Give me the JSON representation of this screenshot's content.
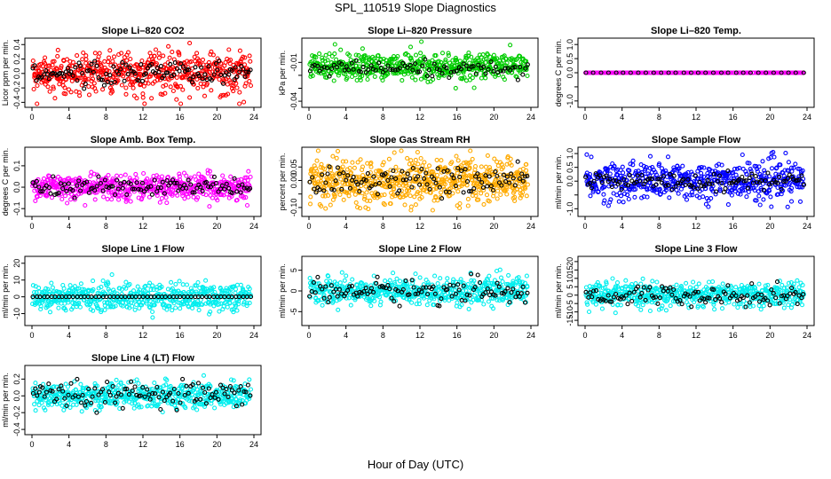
{
  "main_title": "SPL_110519  Slope Diagnostics",
  "x_axis_label": "Hour of Day (UTC)",
  "chart_data": [
    {
      "type": "scatter",
      "title": "Slope Li–820 CO2",
      "ylabel": "Licor ppm per min.",
      "color": "#ff0000",
      "xlim": [
        0,
        24
      ],
      "xticks": [
        0,
        4,
        8,
        12,
        16,
        20,
        24
      ],
      "ylim": [
        -0.42,
        0.44
      ],
      "yticks": [
        -0.4,
        -0.2,
        0.0,
        0.2,
        0.4
      ],
      "ytick_labels": [
        "-0.4",
        "-0.2",
        "0.0",
        "0.2",
        "0.4"
      ],
      "series": [
        {
          "color": "#ff0000",
          "spread": 0.15,
          "extreme": 0.42,
          "count": 560,
          "x": [],
          "y": []
        },
        {
          "color": "#000000",
          "spread": 0.08,
          "extreme": 0.25,
          "count": 120,
          "x": [],
          "y": []
        }
      ]
    },
    {
      "type": "scatter",
      "title": "Slope Li–820 Pressure",
      "ylabel": "kPa per min.",
      "color": "#00cc00",
      "xlim": [
        0,
        24
      ],
      "xticks": [
        0,
        4,
        8,
        12,
        16,
        20,
        24
      ],
      "ylim": [
        -0.042,
        0.006
      ],
      "yticks": [
        -0.04,
        -0.03,
        -0.02,
        -0.01
      ],
      "ytick_labels": [
        "-0.04",
        "",
        "",
        "-0.01"
      ],
      "series": [
        {
          "color": "#00cc00",
          "spread": 0.005,
          "center": -0.013,
          "extreme": 0.04,
          "count": 560,
          "x": [],
          "y": []
        },
        {
          "color": "#000000",
          "spread": 0.003,
          "center": -0.015,
          "extreme": 0.02,
          "count": 90,
          "x": [],
          "y": []
        }
      ]
    },
    {
      "type": "scatter",
      "title": "Slope Li–820 Temp.",
      "ylabel": "degrees C per min.",
      "color": "#ff00ff",
      "xlim": [
        0,
        24
      ],
      "xticks": [
        0,
        4,
        8,
        12,
        16,
        20,
        24
      ],
      "ylim": [
        -1.1,
        1.1
      ],
      "yticks": [
        -1.0,
        -0.5,
        0.0,
        0.5,
        1.0
      ],
      "ytick_labels": [
        "-1.0",
        "",
        "0.0",
        "0.5",
        "1.0"
      ],
      "series": [
        {
          "color": "#ff00ff",
          "spread": 0,
          "extreme": 0,
          "count": 200,
          "x": [],
          "y": []
        },
        {
          "color": "#000000",
          "spread": 0,
          "extreme": 0,
          "count": 30,
          "x": [],
          "y": []
        }
      ]
    },
    {
      "type": "scatter",
      "title": "Slope Amb. Box Temp.",
      "ylabel": "degrees C per min.",
      "color": "#ff00ff",
      "xlim": [
        0,
        24
      ],
      "xticks": [
        0,
        4,
        8,
        12,
        16,
        20,
        24
      ],
      "ylim": [
        -0.12,
        0.17
      ],
      "yticks": [
        -0.1,
        0.0,
        0.1
      ],
      "ytick_labels": [
        "-0.1",
        "0.0",
        "0.1"
      ],
      "series": [
        {
          "color": "#ff00ff",
          "spread": 0.03,
          "extreme": 0.15,
          "count": 560,
          "x": [],
          "y": []
        },
        {
          "color": "#000000",
          "spread": 0.02,
          "extreme": 0.05,
          "count": 110,
          "x": [],
          "y": []
        }
      ]
    },
    {
      "type": "scatter",
      "title": "Slope Gas Stream RH",
      "ylabel": "percent per min.",
      "color": "#ffaa00",
      "xlim": [
        0,
        24
      ],
      "xticks": [
        0,
        4,
        8,
        12,
        16,
        20,
        24
      ],
      "ylim": [
        -0.12,
        0.11
      ],
      "yticks": [
        -0.1,
        -0.05,
        0.0,
        0.05
      ],
      "ytick_labels": [
        "-0.10",
        "",
        "0.00",
        "0.05"
      ],
      "series": [
        {
          "color": "#ffaa00",
          "spread": 0.04,
          "extreme": 0.11,
          "count": 650,
          "x": [],
          "y": []
        },
        {
          "color": "#000000",
          "spread": 0.025,
          "extreme": 0.07,
          "count": 110,
          "x": [],
          "y": []
        }
      ]
    },
    {
      "type": "scatter",
      "title": "Slope Sample Flow",
      "ylabel": "ml/min per min.",
      "color": "#0000ff",
      "xlim": [
        0,
        24
      ],
      "xticks": [
        0,
        4,
        8,
        12,
        16,
        20,
        24
      ],
      "ylim": [
        -1.15,
        1.1
      ],
      "yticks": [
        -1.0,
        -0.5,
        0.0,
        0.5,
        1.0
      ],
      "ytick_labels": [
        "-1.0",
        "",
        "0.0",
        "0.5",
        "1.0"
      ],
      "series": [
        {
          "color": "#0000ff",
          "spread": 0.35,
          "extreme": 1.05,
          "count": 560,
          "x": [],
          "y": []
        },
        {
          "color": "#000000",
          "spread": 0.15,
          "extreme": 0.4,
          "count": 110,
          "x": [],
          "y": []
        }
      ]
    },
    {
      "type": "scatter",
      "title": "Slope Line 1 Flow",
      "ylabel": "ml/min per min.",
      "color": "#00eeee",
      "xlim": [
        0,
        24
      ],
      "xticks": [
        0,
        4,
        8,
        12,
        16,
        20,
        24
      ],
      "ylim": [
        -15,
        22
      ],
      "yticks": [
        -10,
        0,
        10,
        20
      ],
      "ytick_labels": [
        "-10",
        "0",
        "10",
        "20"
      ],
      "series": [
        {
          "color": "#00eeee",
          "spread": 4,
          "extreme": 15,
          "count": 560,
          "x": [],
          "y": []
        },
        {
          "color": "#000000",
          "spread": 0,
          "extreme": 0,
          "count": 60,
          "x": [],
          "y": []
        }
      ]
    },
    {
      "type": "scatter",
      "title": "Slope Line 2 Flow",
      "ylabel": "ml/min per min.",
      "color": "#00eeee",
      "xlim": [
        0,
        24
      ],
      "xticks": [
        0,
        4,
        8,
        12,
        16,
        20,
        24
      ],
      "ylim": [
        -7.5,
        7.5
      ],
      "yticks": [
        -5,
        0,
        5
      ],
      "ytick_labels": [
        "-5",
        "0",
        "5"
      ],
      "series": [
        {
          "color": "#00eeee",
          "spread": 1.6,
          "extreme": 7,
          "count": 560,
          "x": [],
          "y": []
        },
        {
          "color": "#000000",
          "spread": 1.5,
          "extreme": 4.5,
          "count": 110,
          "x": [],
          "y": []
        }
      ]
    },
    {
      "type": "scatter",
      "title": "Slope Line 3 Flow",
      "ylabel": "ml/min per min.",
      "color": "#00eeee",
      "xlim": [
        0,
        24
      ],
      "xticks": [
        0,
        4,
        8,
        12,
        16,
        20,
        24
      ],
      "ylim": [
        -16,
        21
      ],
      "yticks": [
        -15,
        -10,
        -5,
        0,
        5,
        10,
        15,
        20
      ],
      "ytick_labels": [
        "-15",
        "-10",
        "-5",
        "0",
        "5",
        "10",
        "15",
        "20"
      ],
      "series": [
        {
          "color": "#00eeee",
          "spread": 3.5,
          "extreme": 16,
          "count": 560,
          "x": [],
          "y": []
        },
        {
          "color": "#000000",
          "spread": 3,
          "extreme": 9,
          "count": 110,
          "x": [],
          "y": []
        }
      ]
    },
    {
      "type": "scatter",
      "title": "Slope Line 4 (LT) Flow",
      "ylabel": "ml/min per min.",
      "color": "#00eeee",
      "xlim": [
        0,
        24
      ],
      "xticks": [
        0,
        4,
        8,
        12,
        16,
        20,
        24
      ],
      "ylim": [
        -0.42,
        0.32
      ],
      "yticks": [
        -0.4,
        -0.2,
        0.0,
        0.2
      ],
      "ytick_labels": [
        "-0.4",
        "-0.2",
        "0.0",
        "0.2"
      ],
      "series": [
        {
          "color": "#00eeee",
          "spread": 0.08,
          "extreme": 0.3,
          "count": 560,
          "x": [],
          "y": []
        },
        {
          "color": "#000000",
          "spread": 0.08,
          "extreme": 0.2,
          "count": 110,
          "x": [],
          "y": []
        }
      ]
    }
  ]
}
